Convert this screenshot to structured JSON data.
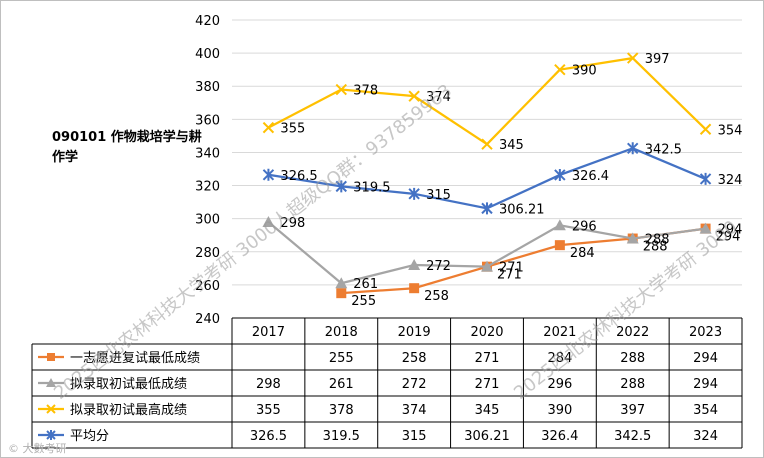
{
  "chart_data": {
    "type": "line",
    "title": "090101 作物栽培学与耕作学",
    "x": [
      "2017",
      "2018",
      "2019",
      "2020",
      "2021",
      "2022",
      "2023"
    ],
    "ylim": [
      240,
      420
    ],
    "yticks": [
      240,
      260,
      280,
      300,
      320,
      340,
      360,
      380,
      400,
      420
    ],
    "grid": true,
    "series": [
      {
        "name": "一志愿进复试最低成绩",
        "color": "#ED7D31",
        "marker": "square",
        "values": [
          null,
          255,
          258,
          271,
          284,
          288,
          294
        ],
        "labels": [
          "",
          "255",
          "258",
          "271",
          "284",
          "288",
          "294"
        ]
      },
      {
        "name": "拟录取初试最低成绩",
        "color": "#A5A5A5",
        "marker": "triangle",
        "values": [
          298,
          261,
          272,
          271,
          296,
          288,
          294
        ],
        "labels": [
          "298",
          "261",
          "272",
          "271",
          "296",
          "288",
          "294"
        ]
      },
      {
        "name": "拟录取初试最高成绩",
        "color": "#FFC000",
        "marker": "x",
        "values": [
          355,
          378,
          374,
          345,
          390,
          397,
          354
        ],
        "labels": [
          "355",
          "378",
          "374",
          "345",
          "390",
          "397",
          "354"
        ]
      },
      {
        "name": "平均分",
        "color": "#4472C4",
        "marker": "star",
        "values": [
          326.5,
          319.5,
          315,
          306.21,
          326.4,
          342.5,
          324
        ],
        "labels": [
          "326.5",
          "319.5",
          "315",
          "306.21",
          "326.4",
          "342.5",
          "324"
        ]
      }
    ]
  },
  "watermarks": [
    "2025西北农林科技大学考研 3000人超级QQ群：937859963",
    "2025西北农林科技大学考研 3000",
    "2025西北农林科技大学考研 3000"
  ],
  "corner_mark": "© 大數考研"
}
